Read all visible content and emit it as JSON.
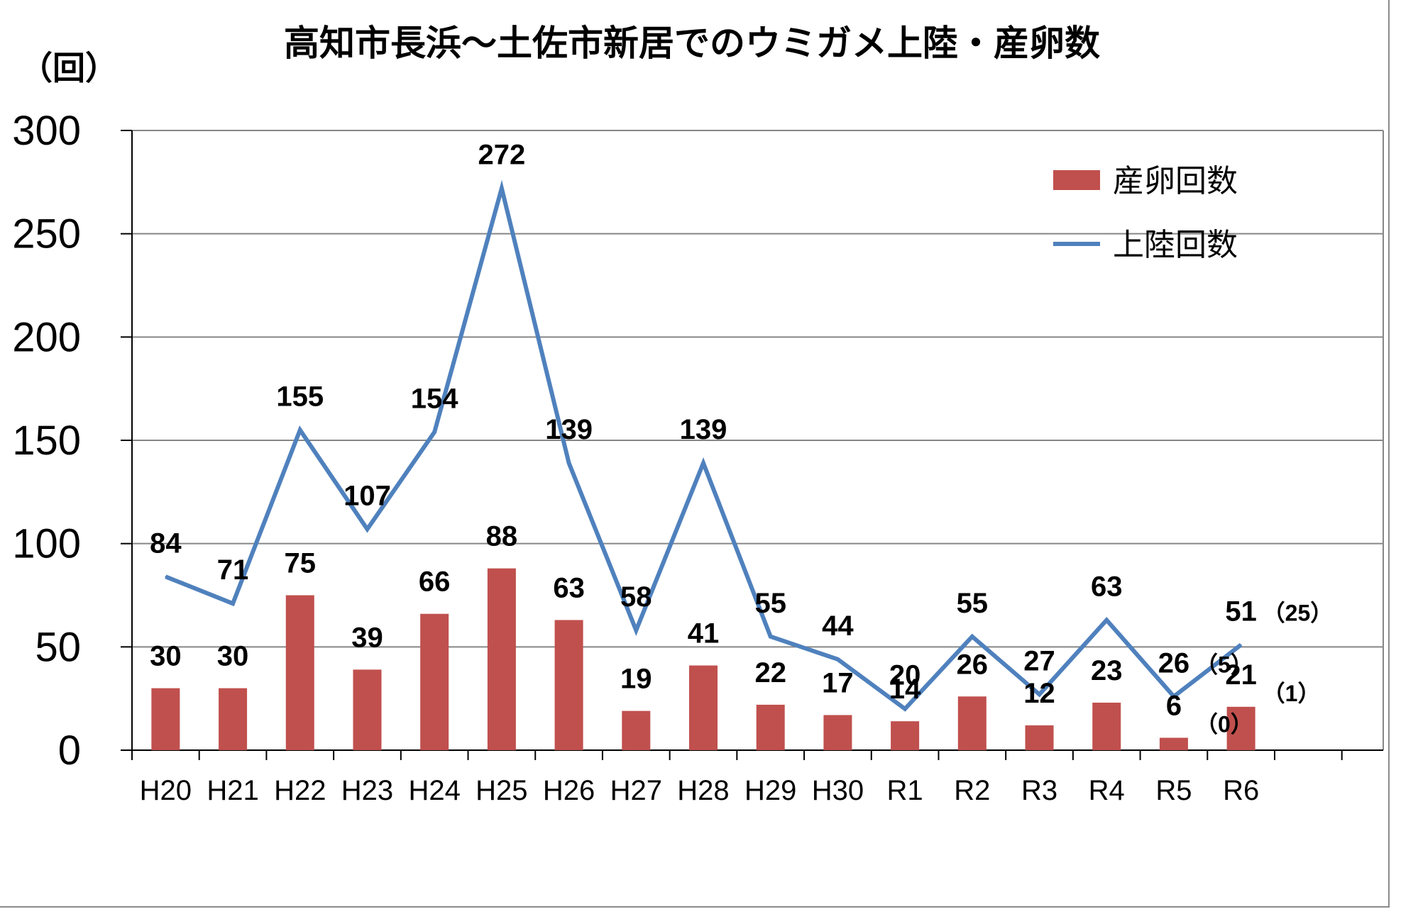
{
  "chart_data": {
    "type": "bar",
    "title": "高知市長浜～土佐市新居でのウミガメ上陸・産卵数",
    "unit_label": "（回）",
    "categories": [
      "H20",
      "H21",
      "H22",
      "H23",
      "H24",
      "H25",
      "H26",
      "H27",
      "H28",
      "H29",
      "H30",
      "R1",
      "R2",
      "R3",
      "R4",
      "R5",
      "R6"
    ],
    "ylim": [
      0,
      300
    ],
    "yticks": [
      0,
      50,
      100,
      150,
      200,
      250,
      300
    ],
    "grid": true,
    "legend_position": "top-right",
    "series": [
      {
        "name": "産卵回数",
        "type": "bar",
        "color": "#c0504d",
        "values": [
          30,
          30,
          75,
          39,
          66,
          88,
          63,
          19,
          41,
          22,
          17,
          14,
          26,
          12,
          23,
          6,
          21
        ]
      },
      {
        "name": "上陸回数",
        "type": "line",
        "color": "#4f81bd",
        "values": [
          84,
          71,
          155,
          107,
          154,
          272,
          139,
          58,
          139,
          55,
          44,
          20,
          55,
          27,
          63,
          26,
          51
        ]
      }
    ],
    "annotations": [
      {
        "category": "R5",
        "series": "上陸回数",
        "text": "（5）"
      },
      {
        "category": "R5",
        "series": "産卵回数",
        "text": "（0）"
      },
      {
        "category": "R6",
        "series": "上陸回数",
        "text": "（25）"
      },
      {
        "category": "R6",
        "series": "産卵回数",
        "text": "（1）"
      }
    ]
  }
}
